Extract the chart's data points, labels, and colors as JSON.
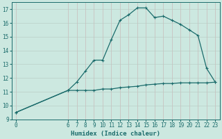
{
  "xlabel": "Humidex (Indice chaleur)",
  "bg_color": "#cce8e0",
  "line_color": "#1a6b6b",
  "grid_color_major": "#b8d8cc",
  "grid_color_minor": "#d4ece4",
  "x_hours": [
    0,
    6,
    7,
    8,
    9,
    10,
    11,
    12,
    13,
    14,
    15,
    16,
    17,
    18,
    19,
    20,
    21,
    22,
    23
  ],
  "y_high": [
    9.5,
    11.1,
    11.7,
    12.5,
    13.3,
    13.3,
    14.8,
    16.2,
    16.6,
    17.1,
    17.1,
    16.4,
    16.5,
    16.2,
    15.9,
    15.5,
    15.1,
    12.7,
    11.7
  ],
  "y_low": [
    9.5,
    11.1,
    11.1,
    11.1,
    11.1,
    11.2,
    11.2,
    11.3,
    11.35,
    11.4,
    11.5,
    11.55,
    11.6,
    11.6,
    11.65,
    11.65,
    11.65,
    11.65,
    11.7
  ],
  "ylim": [
    9,
    17.5
  ],
  "xlim": [
    -0.5,
    23.5
  ],
  "yticks": [
    9,
    10,
    11,
    12,
    13,
    14,
    15,
    16,
    17
  ],
  "xticks": [
    0,
    6,
    7,
    8,
    9,
    10,
    11,
    12,
    13,
    14,
    15,
    16,
    17,
    18,
    19,
    20,
    21,
    22,
    23
  ],
  "xtick_labels": [
    "0",
    "6",
    "7",
    "8",
    "9",
    "10",
    "11",
    "12",
    "13",
    "14",
    "15",
    "16",
    "17",
    "18",
    "19",
    "20",
    "21",
    "22",
    "23"
  ],
  "tick_fontsize": 5.5,
  "xlabel_fontsize": 6.5
}
